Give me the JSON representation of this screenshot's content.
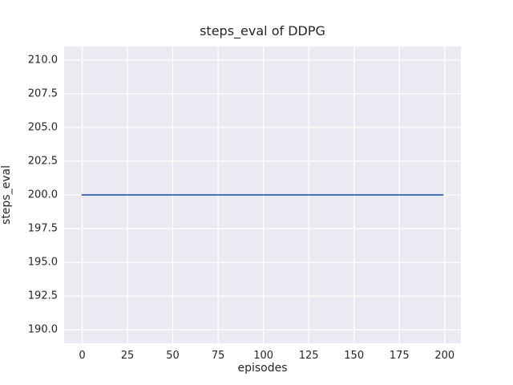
{
  "chart_data": {
    "type": "line",
    "title": "steps_eval of DDPG",
    "xlabel": "episodes",
    "ylabel": "steps_eval",
    "xlim": [
      -9.95,
      208.95
    ],
    "ylim": [
      189,
      211
    ],
    "xtick_values": [
      0,
      25,
      50,
      75,
      100,
      125,
      150,
      175,
      200
    ],
    "xtick_labels": [
      "0",
      "25",
      "50",
      "75",
      "100",
      "125",
      "150",
      "175",
      "200"
    ],
    "ytick_values": [
      190.0,
      192.5,
      195.0,
      197.5,
      200.0,
      202.5,
      205.0,
      207.5,
      210.0
    ],
    "ytick_labels": [
      "190.0",
      "192.5",
      "195.0",
      "197.5",
      "200.0",
      "202.5",
      "205.0",
      "207.5",
      "210.0"
    ],
    "grid": true,
    "legend": "none",
    "series": [
      {
        "name": "steps_eval",
        "x": [
          0,
          199
        ],
        "y": [
          200,
          200
        ],
        "color": "#4c72b0",
        "linewidth": 2
      }
    ],
    "style": {
      "plot_background": "#eaeaf2",
      "grid_color": "#ffffff",
      "text_color": "#262626",
      "figure_background": "#ffffff"
    }
  }
}
